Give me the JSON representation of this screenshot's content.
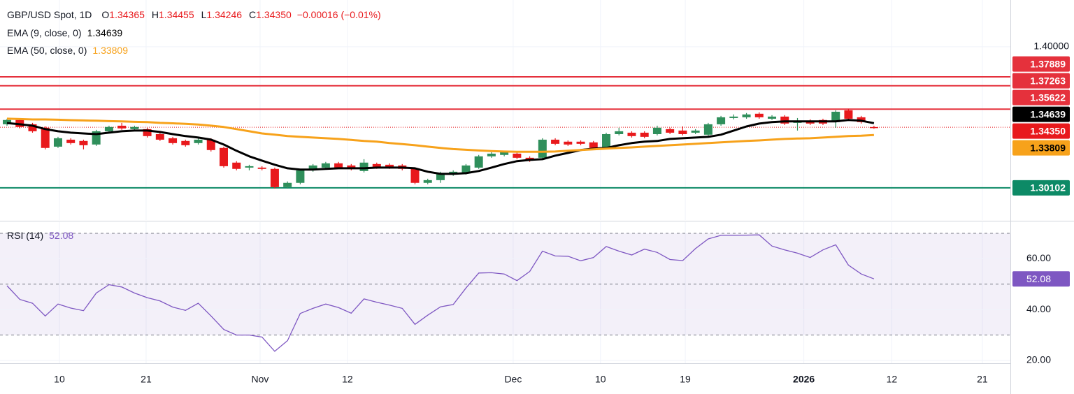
{
  "chart_data": [
    {
      "type": "candlestick",
      "title": "GBP/USD Spot, 1D",
      "legend_keys": [
        "O",
        "H",
        "L",
        "C"
      ],
      "change_label": "−0.00016 (−0.01%)",
      "up_color": "#2f8f5b",
      "down_color": "#e8191c",
      "open": [
        1.3456,
        1.3486,
        1.3456,
        1.3432,
        1.3299,
        1.3348,
        1.3339,
        1.3314,
        1.3407,
        1.3446,
        1.3422,
        1.3422,
        1.3387,
        1.3358,
        1.3339,
        1.3324,
        1.3348,
        1.329,
        1.3187,
        1.3152,
        1.3152,
        1.3143,
        1.3015,
        1.3045,
        1.3133,
        1.3152,
        1.3182,
        1.3167,
        1.3128,
        1.3177,
        1.3172,
        1.3167,
        1.3143,
        1.3045,
        1.3064,
        1.3103,
        1.3113,
        1.3152,
        1.3231,
        1.3241,
        1.325,
        1.3221,
        1.3221,
        1.3348,
        1.3334,
        1.3334,
        1.3329,
        1.329,
        1.3387,
        1.3397,
        1.3397,
        1.3387,
        1.3422,
        1.3412,
        1.3397,
        1.3383,
        1.3456,
        1.35,
        1.3505,
        1.353,
        1.3495,
        1.351,
        1.3466,
        1.3481,
        1.3486,
        1.3471,
        1.3554,
        1.3505,
        1.34365
      ],
      "high": [
        1.3495,
        1.3495,
        1.3466,
        1.3441,
        1.3368,
        1.3358,
        1.3348,
        1.3417,
        1.3446,
        1.3466,
        1.3446,
        1.3432,
        1.3397,
        1.3368,
        1.3348,
        1.3358,
        1.3358,
        1.3299,
        1.3197,
        1.3172,
        1.3162,
        1.3152,
        1.3055,
        1.3143,
        1.3177,
        1.3192,
        1.3192,
        1.3177,
        1.3211,
        1.3187,
        1.3182,
        1.3177,
        1.3152,
        1.3074,
        1.3123,
        1.3133,
        1.3177,
        1.3241,
        1.326,
        1.327,
        1.326,
        1.3231,
        1.3358,
        1.3358,
        1.3343,
        1.3343,
        1.3339,
        1.3397,
        1.3432,
        1.3407,
        1.3407,
        1.3446,
        1.3432,
        1.3441,
        1.3422,
        1.3466,
        1.3515,
        1.3525,
        1.3535,
        1.354,
        1.352,
        1.352,
        1.35,
        1.3491,
        1.3495,
        1.3554,
        1.3564,
        1.3515,
        1.34455
      ],
      "low": [
        1.3446,
        1.3427,
        1.3397,
        1.328,
        1.329,
        1.3314,
        1.328,
        1.3304,
        1.3397,
        1.3417,
        1.3412,
        1.3363,
        1.3339,
        1.3314,
        1.3299,
        1.3314,
        1.3265,
        1.3152,
        1.3133,
        1.3133,
        1.3133,
        1.3005,
        1.3005,
        1.3035,
        1.3123,
        1.3143,
        1.3143,
        1.3133,
        1.3118,
        1.3143,
        1.3143,
        1.3133,
        1.3035,
        1.3035,
        1.3045,
        1.3094,
        1.3103,
        1.3143,
        1.3221,
        1.3231,
        1.3211,
        1.3192,
        1.3211,
        1.3309,
        1.3304,
        1.3309,
        1.328,
        1.328,
        1.3378,
        1.3363,
        1.3358,
        1.3378,
        1.3387,
        1.3378,
        1.3387,
        1.3373,
        1.3446,
        1.349,
        1.3495,
        1.3495,
        1.3486,
        1.3451,
        1.3412,
        1.3451,
        1.3451,
        1.3432,
        1.3486,
        1.3461,
        1.34246
      ],
      "close": [
        1.3486,
        1.3437,
        1.3407,
        1.329,
        1.3358,
        1.3324,
        1.3309,
        1.3407,
        1.3437,
        1.3427,
        1.3437,
        1.3373,
        1.3348,
        1.3324,
        1.3309,
        1.3348,
        1.3275,
        1.3162,
        1.3143,
        1.3162,
        1.3143,
        1.3015,
        1.3045,
        1.3133,
        1.3167,
        1.3182,
        1.3152,
        1.3143,
        1.3187,
        1.3152,
        1.3152,
        1.3143,
        1.3045,
        1.3064,
        1.3113,
        1.3123,
        1.3167,
        1.3231,
        1.325,
        1.326,
        1.3221,
        1.3201,
        1.3348,
        1.3319,
        1.3314,
        1.3319,
        1.329,
        1.3387,
        1.3407,
        1.3373,
        1.3368,
        1.3432,
        1.3397,
        1.3387,
        1.3412,
        1.3456,
        1.3505,
        1.351,
        1.3525,
        1.3505,
        1.351,
        1.3461,
        1.3481,
        1.3461,
        1.3461,
        1.3544,
        1.3495,
        1.3471,
        1.3435
      ],
      "series": [
        {
          "name": "EMA (9, close, 0)",
          "color": "#000000",
          "values": [
            1.3465,
            1.3456,
            1.3446,
            1.3422,
            1.3407,
            1.3397,
            1.3392,
            1.3387,
            1.3397,
            1.3407,
            1.3412,
            1.3412,
            1.3402,
            1.3387,
            1.3373,
            1.3363,
            1.3348,
            1.3314,
            1.327,
            1.3231,
            1.3201,
            1.3172,
            1.3147,
            1.3138,
            1.3138,
            1.3143,
            1.3147,
            1.3147,
            1.3147,
            1.3152,
            1.3152,
            1.3152,
            1.3147,
            1.3123,
            1.3108,
            1.3108,
            1.3113,
            1.3128,
            1.3152,
            1.3177,
            1.3197,
            1.3206,
            1.3211,
            1.3236,
            1.3255,
            1.3275,
            1.3285,
            1.329,
            1.3309,
            1.3324,
            1.3334,
            1.3339,
            1.3353,
            1.3358,
            1.3363,
            1.3368,
            1.3383,
            1.3412,
            1.3441,
            1.3461,
            1.3471,
            1.3476,
            1.3476,
            1.3476,
            1.3476,
            1.3476,
            1.3486,
            1.3481,
            1.34639
          ]
        },
        {
          "name": "EMA (50, close, 0)",
          "color": "#f7a21b",
          "values": [
            1.3495,
            1.3493,
            1.349,
            1.349,
            1.3488,
            1.3485,
            1.3483,
            1.3481,
            1.3478,
            1.3476,
            1.3473,
            1.3471,
            1.3466,
            1.3463,
            1.3459,
            1.3454,
            1.3446,
            1.3437,
            1.3422,
            1.3407,
            1.3392,
            1.3383,
            1.3373,
            1.3368,
            1.3363,
            1.3358,
            1.3353,
            1.3346,
            1.3339,
            1.3334,
            1.3324,
            1.3317,
            1.3309,
            1.3299,
            1.329,
            1.3282,
            1.3277,
            1.3272,
            1.3268,
            1.3265,
            1.3263,
            1.3263,
            1.3263,
            1.3265,
            1.327,
            1.3275,
            1.328,
            1.3285,
            1.329,
            1.3294,
            1.3299,
            1.3304,
            1.3309,
            1.3314,
            1.3319,
            1.3324,
            1.3329,
            1.3334,
            1.3339,
            1.3343,
            1.3348,
            1.3353,
            1.3356,
            1.3358,
            1.3363,
            1.3368,
            1.3373,
            1.3376,
            1.33809
          ]
        }
      ],
      "levels": [
        {
          "value": 1.37889,
          "color": "#e5313c"
        },
        {
          "value": 1.37263,
          "color": "#e5313c"
        },
        {
          "value": 1.35622,
          "color": "#e5313c"
        },
        {
          "value": 1.30102,
          "color": "#0d8a66"
        }
      ],
      "price_line": {
        "value": 1.3435,
        "label": "1.34350",
        "color": "#e8191c"
      },
      "xlim": [
        -0.55,
        78.7
      ],
      "ylim": [
        1.2784,
        1.4328
      ],
      "yticks": [
        {
          "value": 1.4,
          "label": "1.40000"
        }
      ],
      "xticks": [
        {
          "value": 4.11,
          "label": "10"
        },
        {
          "value": 10.91,
          "label": "21"
        },
        {
          "value": 19.85,
          "label": "Nov"
        },
        {
          "value": 26.7,
          "label": "12"
        },
        {
          "value": 39.7,
          "label": "Dec"
        },
        {
          "value": 46.55,
          "label": "10"
        },
        {
          "value": 53.2,
          "label": "19"
        },
        {
          "value": 62.5,
          "label": "2026"
        },
        {
          "value": 69.4,
          "label": "12"
        },
        {
          "value": 76.5,
          "label": "21"
        }
      ],
      "grid": true
    },
    {
      "type": "line",
      "name": "RSI (14)",
      "color": "#7e57c2",
      "values": [
        49.4,
        44,
        42.5,
        37.5,
        42.2,
        40.6,
        39.6,
        46.5,
        49.8,
        48.9,
        46.5,
        44.7,
        43.4,
        41.0,
        39.7,
        42.5,
        37.5,
        32.2,
        30.0,
        30.0,
        29.2,
        23.6,
        27.8,
        38.5,
        40.5,
        42.2,
        40.8,
        38.6,
        44.2,
        42.9,
        41.8,
        40.5,
        34.2,
        37.8,
        41.1,
        42.0,
        48.5,
        54.4,
        54.5,
        54.0,
        51.4,
        55.0,
        63.0,
        61.1,
        61.0,
        59.2,
        60.5,
        64.8,
        63.0,
        61.5,
        63.8,
        62.5,
        59.7,
        59.3,
        64.0,
        67.8,
        69.2,
        69.2,
        69.3,
        69.4,
        65.0,
        63.5,
        62.2,
        60.5,
        63.5,
        65.5,
        57.5,
        54.0,
        52.08
      ],
      "bands": [
        70,
        50,
        30
      ],
      "ylim": [
        18.9,
        74.4
      ],
      "yticks": [
        {
          "value": 60,
          "label": "60.00"
        },
        {
          "value": 40,
          "label": "40.00"
        },
        {
          "value": 20,
          "label": "20.00"
        }
      ]
    }
  ]
}
